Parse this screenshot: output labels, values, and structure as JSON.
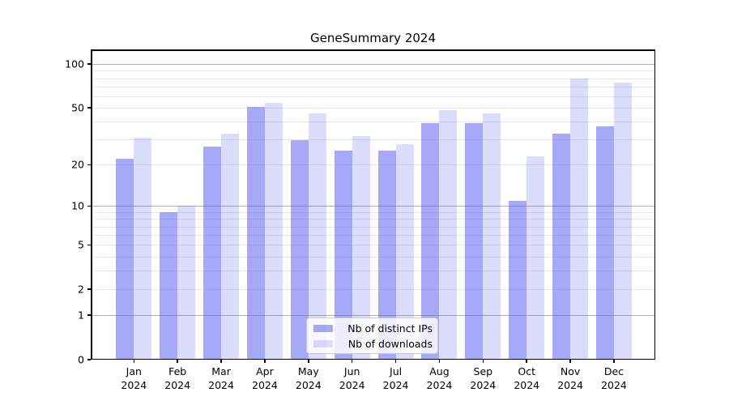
{
  "title": "GeneSummary 2024",
  "legend": {
    "items": [
      {
        "label": "Nb of distinct IPs",
        "color": "rgba(97,97,242,0.55)"
      },
      {
        "label": "Nb of downloads",
        "color": "rgba(97,97,242,0.22)"
      }
    ]
  },
  "colors": {
    "bar_dark_solid": "#a8a8f8",
    "bar_light_solid": "#dcdcf8",
    "grid_major": "#b0b0b0",
    "grid_minor": "#e8e8e8",
    "spine": "#000000",
    "legend_border": "#cccccc"
  },
  "chart_data": {
    "type": "bar",
    "title": "GeneSummary 2024",
    "categories": [
      "Jan 2024",
      "Feb 2024",
      "Mar 2024",
      "Apr 2024",
      "May 2024",
      "Jun 2024",
      "Jul 2024",
      "Aug 2024",
      "Sep 2024",
      "Oct 2024",
      "Nov 2024",
      "Dec 2024"
    ],
    "series": [
      {
        "name": "Nb of distinct IPs",
        "values": [
          22,
          9,
          27,
          51,
          30,
          25,
          25,
          39,
          39,
          11,
          33,
          37
        ]
      },
      {
        "name": "Nb of downloads",
        "values": [
          31,
          10,
          33,
          54,
          46,
          32,
          28,
          48,
          46,
          23,
          80,
          75
        ]
      }
    ],
    "xlabel": "",
    "ylabel": "",
    "yscale": "log1p",
    "ylim": [
      0,
      126
    ],
    "yticks": [
      100,
      50,
      20,
      10,
      5,
      2,
      1,
      0
    ],
    "grid_minor_values": [
      2,
      3,
      4,
      5,
      6,
      7,
      8,
      9,
      20,
      30,
      40,
      50,
      60,
      70,
      80,
      90
    ],
    "grid_major_values": [
      1,
      10,
      100
    ],
    "grid": "horizontal",
    "legend_position": "lower center"
  }
}
